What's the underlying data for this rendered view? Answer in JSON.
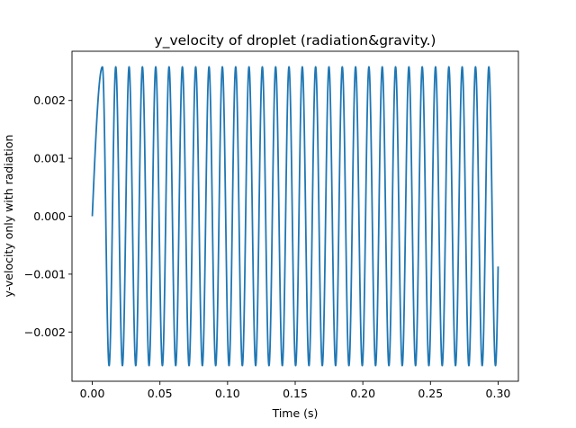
{
  "chart_data": {
    "type": "line",
    "title": "y_velocity of droplet (radiation&gravity.)",
    "xlabel": "Time (s)",
    "ylabel": "y-velocity only with radiation",
    "xlim": [
      -0.015,
      0.315
    ],
    "ylim": [
      -0.00285,
      0.00285
    ],
    "x_ticks": [
      0.0,
      0.05,
      0.1,
      0.15,
      0.2,
      0.25,
      0.3
    ],
    "x_tick_labels": [
      "0.00",
      "0.05",
      "0.10",
      "0.15",
      "0.20",
      "0.25",
      "0.30"
    ],
    "y_ticks": [
      -0.002,
      -0.001,
      0.0,
      0.001,
      0.002
    ],
    "y_tick_labels": [
      "−0.002",
      "−0.001",
      "0.000",
      "0.001",
      "0.002"
    ],
    "grid": false,
    "legend": "none",
    "series": [
      {
        "color": "#1f77b4",
        "x_start": 0.0,
        "x_end": 0.3,
        "initial_value": 0.0,
        "amplitude": 0.00258,
        "period": 0.00985,
        "first_peak_x": 0.0075
      }
    ]
  }
}
